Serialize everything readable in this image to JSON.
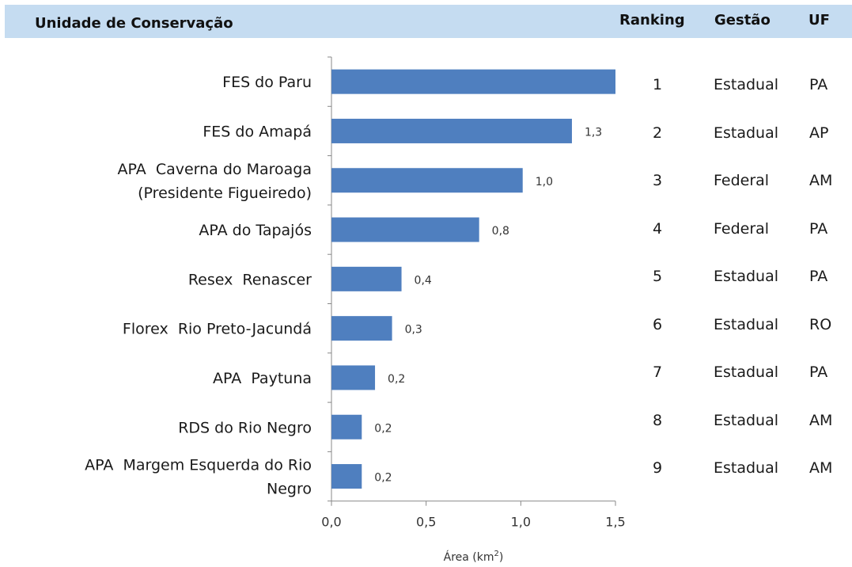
{
  "header": {
    "unit_label": "Unidade de Conservação",
    "ranking_label": "Ranking",
    "gestao_label": "Gestão",
    "uf_label": "UF"
  },
  "colors": {
    "bar": "#4f7fbf",
    "header_bg": "#c5dcf1",
    "axis": "#888888"
  },
  "chart_data": {
    "type": "bar",
    "orientation": "horizontal",
    "categories": [
      [
        "FES do Paru"
      ],
      [
        "FES do Amapá"
      ],
      [
        "APA  Caverna do Maroaga",
        "(Presidente Figueiredo)"
      ],
      [
        "APA do Tapajós"
      ],
      [
        "Resex  Renascer"
      ],
      [
        "Florex  Rio Preto-Jacundá"
      ],
      [
        "APA  Paytuna"
      ],
      [
        "RDS do Rio Negro"
      ],
      [
        "APA  Margem Esquerda do Rio",
        "Negro"
      ]
    ],
    "values": [
      1.5,
      1.27,
      1.01,
      0.78,
      0.37,
      0.32,
      0.23,
      0.16,
      0.16
    ],
    "data_labels": [
      "",
      "1,3",
      "1,0",
      "0,8",
      "0,4",
      "0,3",
      "0,2",
      "0,2",
      "0,2"
    ],
    "xlim": [
      0,
      1.5
    ],
    "xticks": [
      "0,0",
      "0,5",
      "1,0",
      "1,5"
    ],
    "xlabel": "Área (km",
    "xlabel_sup": "2",
    "xlabel_end": ")",
    "grid": false,
    "legend": "none"
  },
  "table": {
    "rows": [
      {
        "ranking": "1",
        "gestao": "Estadual",
        "uf": "PA"
      },
      {
        "ranking": "2",
        "gestao": "Estadual",
        "uf": "AP"
      },
      {
        "ranking": "3",
        "gestao": "Federal",
        "uf": "AM"
      },
      {
        "ranking": "4",
        "gestao": "Federal",
        "uf": "PA"
      },
      {
        "ranking": "5",
        "gestao": "Estadual",
        "uf": "PA"
      },
      {
        "ranking": "6",
        "gestao": "Estadual",
        "uf": "RO"
      },
      {
        "ranking": "7",
        "gestao": "Estadual",
        "uf": "PA"
      },
      {
        "ranking": "8",
        "gestao": "Estadual",
        "uf": "AM"
      },
      {
        "ranking": "9",
        "gestao": "Estadual",
        "uf": "AM"
      }
    ]
  }
}
